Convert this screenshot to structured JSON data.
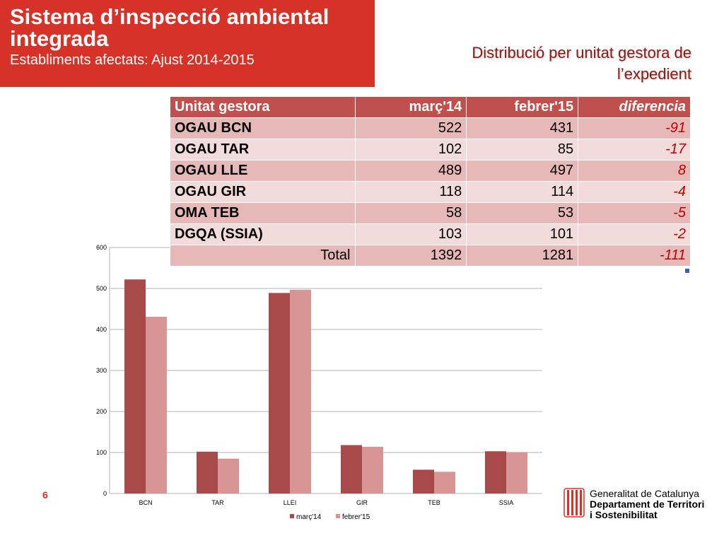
{
  "header": {
    "title": "Sistema d’inspecció ambiental integrada",
    "title_line1": "Sistema d’inspecció ambiental",
    "title_line2": "integrada",
    "subtitle": "Establiments afectats: Ajust 2014-2015"
  },
  "section_title_line1": "Distribució per unitat gestora de",
  "section_title_line2": "l’expedient",
  "table": {
    "headers": [
      "Unitat gestora",
      "març'14",
      "febrer'15",
      "diferencia"
    ],
    "rows": [
      [
        "OGAU BCN",
        "522",
        "431",
        "-91"
      ],
      [
        "OGAU TAR",
        "102",
        "85",
        "-17"
      ],
      [
        "OGAU LLE",
        "489",
        "497",
        "8"
      ],
      [
        "OGAU GIR",
        "118",
        "114",
        "-4"
      ],
      [
        "OMA TEB",
        "58",
        "53",
        "-5"
      ],
      [
        "DGQA (SSIA)",
        "103",
        "101",
        "-2"
      ]
    ],
    "total": [
      "Total",
      "1392",
      "1281",
      "-111"
    ]
  },
  "page_number": "6",
  "logo": {
    "line1": "Generalitat de Catalunya",
    "line2": "Departament de Territori",
    "line3": "i Sostenibilitat"
  },
  "colors": {
    "title_bg": "#d73227",
    "series1": "#a8494a",
    "series2": "#d79594",
    "table_header": "#c0504d"
  },
  "chart_data": {
    "type": "bar",
    "categories": [
      "BCN",
      "TAR",
      "LLEI",
      "GIR",
      "TEB",
      "SSIA"
    ],
    "series": [
      {
        "name": "març'14",
        "values": [
          522,
          102,
          489,
          118,
          58,
          103
        ]
      },
      {
        "name": "febrer'15",
        "values": [
          431,
          85,
          497,
          114,
          53,
          101
        ]
      }
    ],
    "ylim": [
      0,
      600
    ],
    "yticks": [
      0,
      100,
      200,
      300,
      400,
      500,
      600
    ],
    "grid": true,
    "legend": "bottom"
  }
}
